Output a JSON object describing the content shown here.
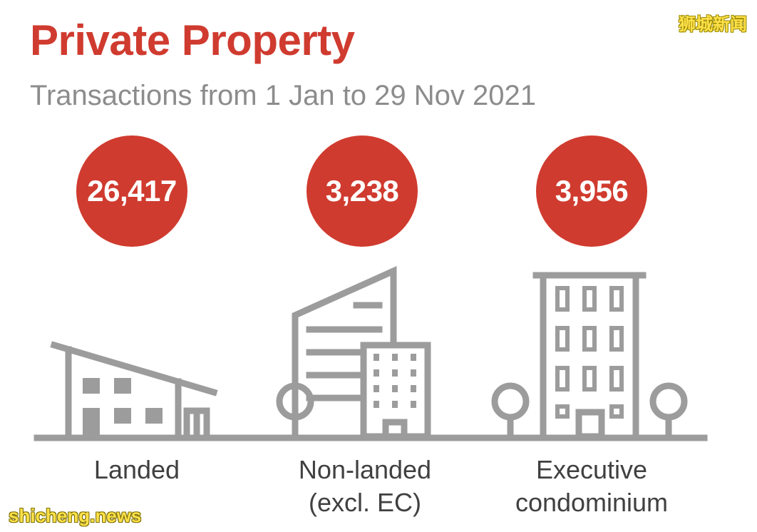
{
  "header": {
    "title": "Private Property",
    "subtitle": "Transactions from 1 Jan to 29 Nov 2021"
  },
  "categories": [
    {
      "value": "26,417",
      "label_line1": "Landed",
      "label_line2": ""
    },
    {
      "value": "3,238",
      "label_line1": "Non-landed",
      "label_line2": "(excl. EC)"
    },
    {
      "value": "3,956",
      "label_line1": "Executive",
      "label_line2": "condominium"
    }
  ],
  "watermarks": {
    "top_right": "狮城新闻",
    "bottom_left": "shicheng.news"
  },
  "colors": {
    "accent": "#d03b2f",
    "icon_gray": "#9c9c9c",
    "text_gray": "#8c8c8c",
    "label_dark": "#404040"
  },
  "icons": [
    "landed-house-icon",
    "non-landed-buildings-icon",
    "executive-condominium-icon",
    "tree-icon"
  ]
}
